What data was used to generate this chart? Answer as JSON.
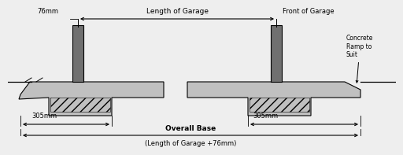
{
  "labels": {
    "length_of_garage": "Length of Garage",
    "front_of_garage": "Front of Garage",
    "concrete_ramp": "Concrete\nRamp to\nSuit",
    "overall_base": "Overall Base",
    "overall_base2": "(Length of Garage +76mm)",
    "dim_76mm": "76mm",
    "dim_305mm_left": "305mm",
    "dim_305mm_right": "305mm"
  },
  "colors": {
    "slab_fill": "#c0c0c0",
    "slab_edge": "#000000",
    "wall_fill": "#707070",
    "wall_edge": "#000000",
    "hatch": "#888888",
    "line": "#000000",
    "text": "#000000",
    "bg": "#eeeeee"
  }
}
